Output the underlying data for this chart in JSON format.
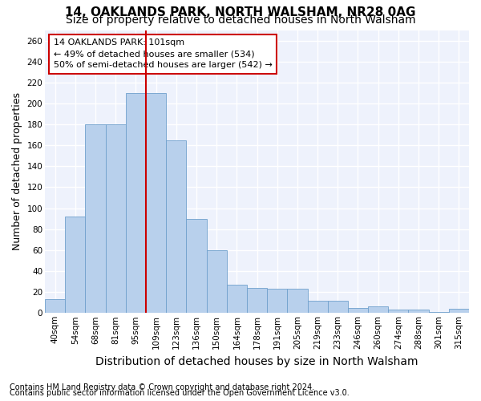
{
  "title1": "14, OAKLANDS PARK, NORTH WALSHAM, NR28 0AG",
  "title2": "Size of property relative to detached houses in North Walsham",
  "xlabel": "Distribution of detached houses by size in North Walsham",
  "ylabel": "Number of detached properties",
  "bar_color": "#b8d0ec",
  "bar_edge_color": "#6fa0cc",
  "categories": [
    "40sqm",
    "54sqm",
    "68sqm",
    "81sqm",
    "95sqm",
    "109sqm",
    "123sqm",
    "136sqm",
    "150sqm",
    "164sqm",
    "178sqm",
    "191sqm",
    "205sqm",
    "219sqm",
    "233sqm",
    "246sqm",
    "260sqm",
    "274sqm",
    "288sqm",
    "301sqm",
    "315sqm"
  ],
  "values": [
    13,
    92,
    180,
    180,
    210,
    210,
    165,
    90,
    60,
    27,
    24,
    23,
    23,
    12,
    12,
    5,
    6,
    3,
    3,
    1,
    4
  ],
  "vline_color": "#cc0000",
  "annotation_text": "14 OAKLANDS PARK: 101sqm\n← 49% of detached houses are smaller (534)\n50% of semi-detached houses are larger (542) →",
  "annotation_box_facecolor": "#ffffff",
  "annotation_box_edgecolor": "#cc0000",
  "footer1": "Contains HM Land Registry data © Crown copyright and database right 2024.",
  "footer2": "Contains public sector information licensed under the Open Government Licence v3.0.",
  "ylim": [
    0,
    270
  ],
  "background_color": "#eef2fc",
  "grid_color": "#ffffff",
  "title1_fontsize": 11,
  "title2_fontsize": 10,
  "xlabel_fontsize": 10,
  "ylabel_fontsize": 9,
  "tick_fontsize": 7.5,
  "annotation_fontsize": 8,
  "footer_fontsize": 7
}
